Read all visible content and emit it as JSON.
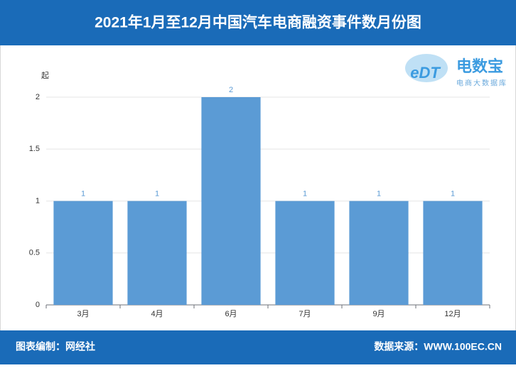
{
  "chart_data": {
    "type": "bar",
    "title": "2021年1月至12月中国汽车电商融资事件数月份图",
    "y_unit": "起",
    "categories": [
      "3月",
      "4月",
      "6月",
      "7月",
      "9月",
      "12月"
    ],
    "values": [
      1,
      1,
      2,
      1,
      1,
      1
    ],
    "color": "#5b9bd5",
    "ylim": [
      0,
      2
    ],
    "yticks": [
      0,
      0.5,
      1,
      1.5,
      2
    ],
    "grid": true
  },
  "logo": {
    "mark": "eDT",
    "name": "电数宝",
    "tagline": "电商大数据库"
  },
  "footer": {
    "left": "图表编制：网经社",
    "right": "数据来源：WWW.100EC.CN"
  }
}
